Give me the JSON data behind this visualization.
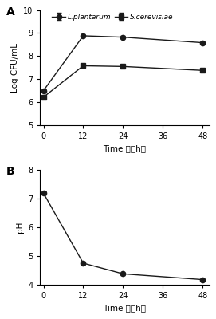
{
  "panel_A": {
    "time": [
      0,
      12,
      24,
      48
    ],
    "L_plantarum": [
      6.5,
      8.88,
      8.82,
      8.58
    ],
    "L_plantarum_err": [
      0.05,
      0.05,
      0.05,
      0.05
    ],
    "S_cerevisiae": [
      6.22,
      7.58,
      7.55,
      7.38
    ],
    "S_cerevisiae_err": [
      0.05,
      0.07,
      0.05,
      0.05
    ],
    "ylabel": "Log CFU/mL",
    "xlabel": "Time  （h）",
    "ylim": [
      5,
      10
    ],
    "yticks": [
      5,
      6,
      7,
      8,
      9,
      10
    ],
    "xticks": [
      0,
      12,
      24,
      36,
      48
    ],
    "xlim": [
      -1,
      50
    ],
    "label": "A"
  },
  "panel_B": {
    "time": [
      0,
      12,
      24,
      48
    ],
    "pH": [
      7.18,
      4.75,
      4.38,
      4.18
    ],
    "pH_err": [
      0.06,
      0.05,
      0.04,
      0.02
    ],
    "ylabel": "pH",
    "xlabel": "Time  （h）",
    "ylim": [
      4,
      8
    ],
    "yticks": [
      4,
      5,
      6,
      7,
      8
    ],
    "xticks": [
      0,
      12,
      24,
      36,
      48
    ],
    "xlim": [
      -1,
      50
    ],
    "label": "B"
  },
  "line_color": "#1a1a1a",
  "marker_circle": "o",
  "marker_square": "s",
  "legend_L": "L.plantarum",
  "legend_S": "S.cerevisiae"
}
